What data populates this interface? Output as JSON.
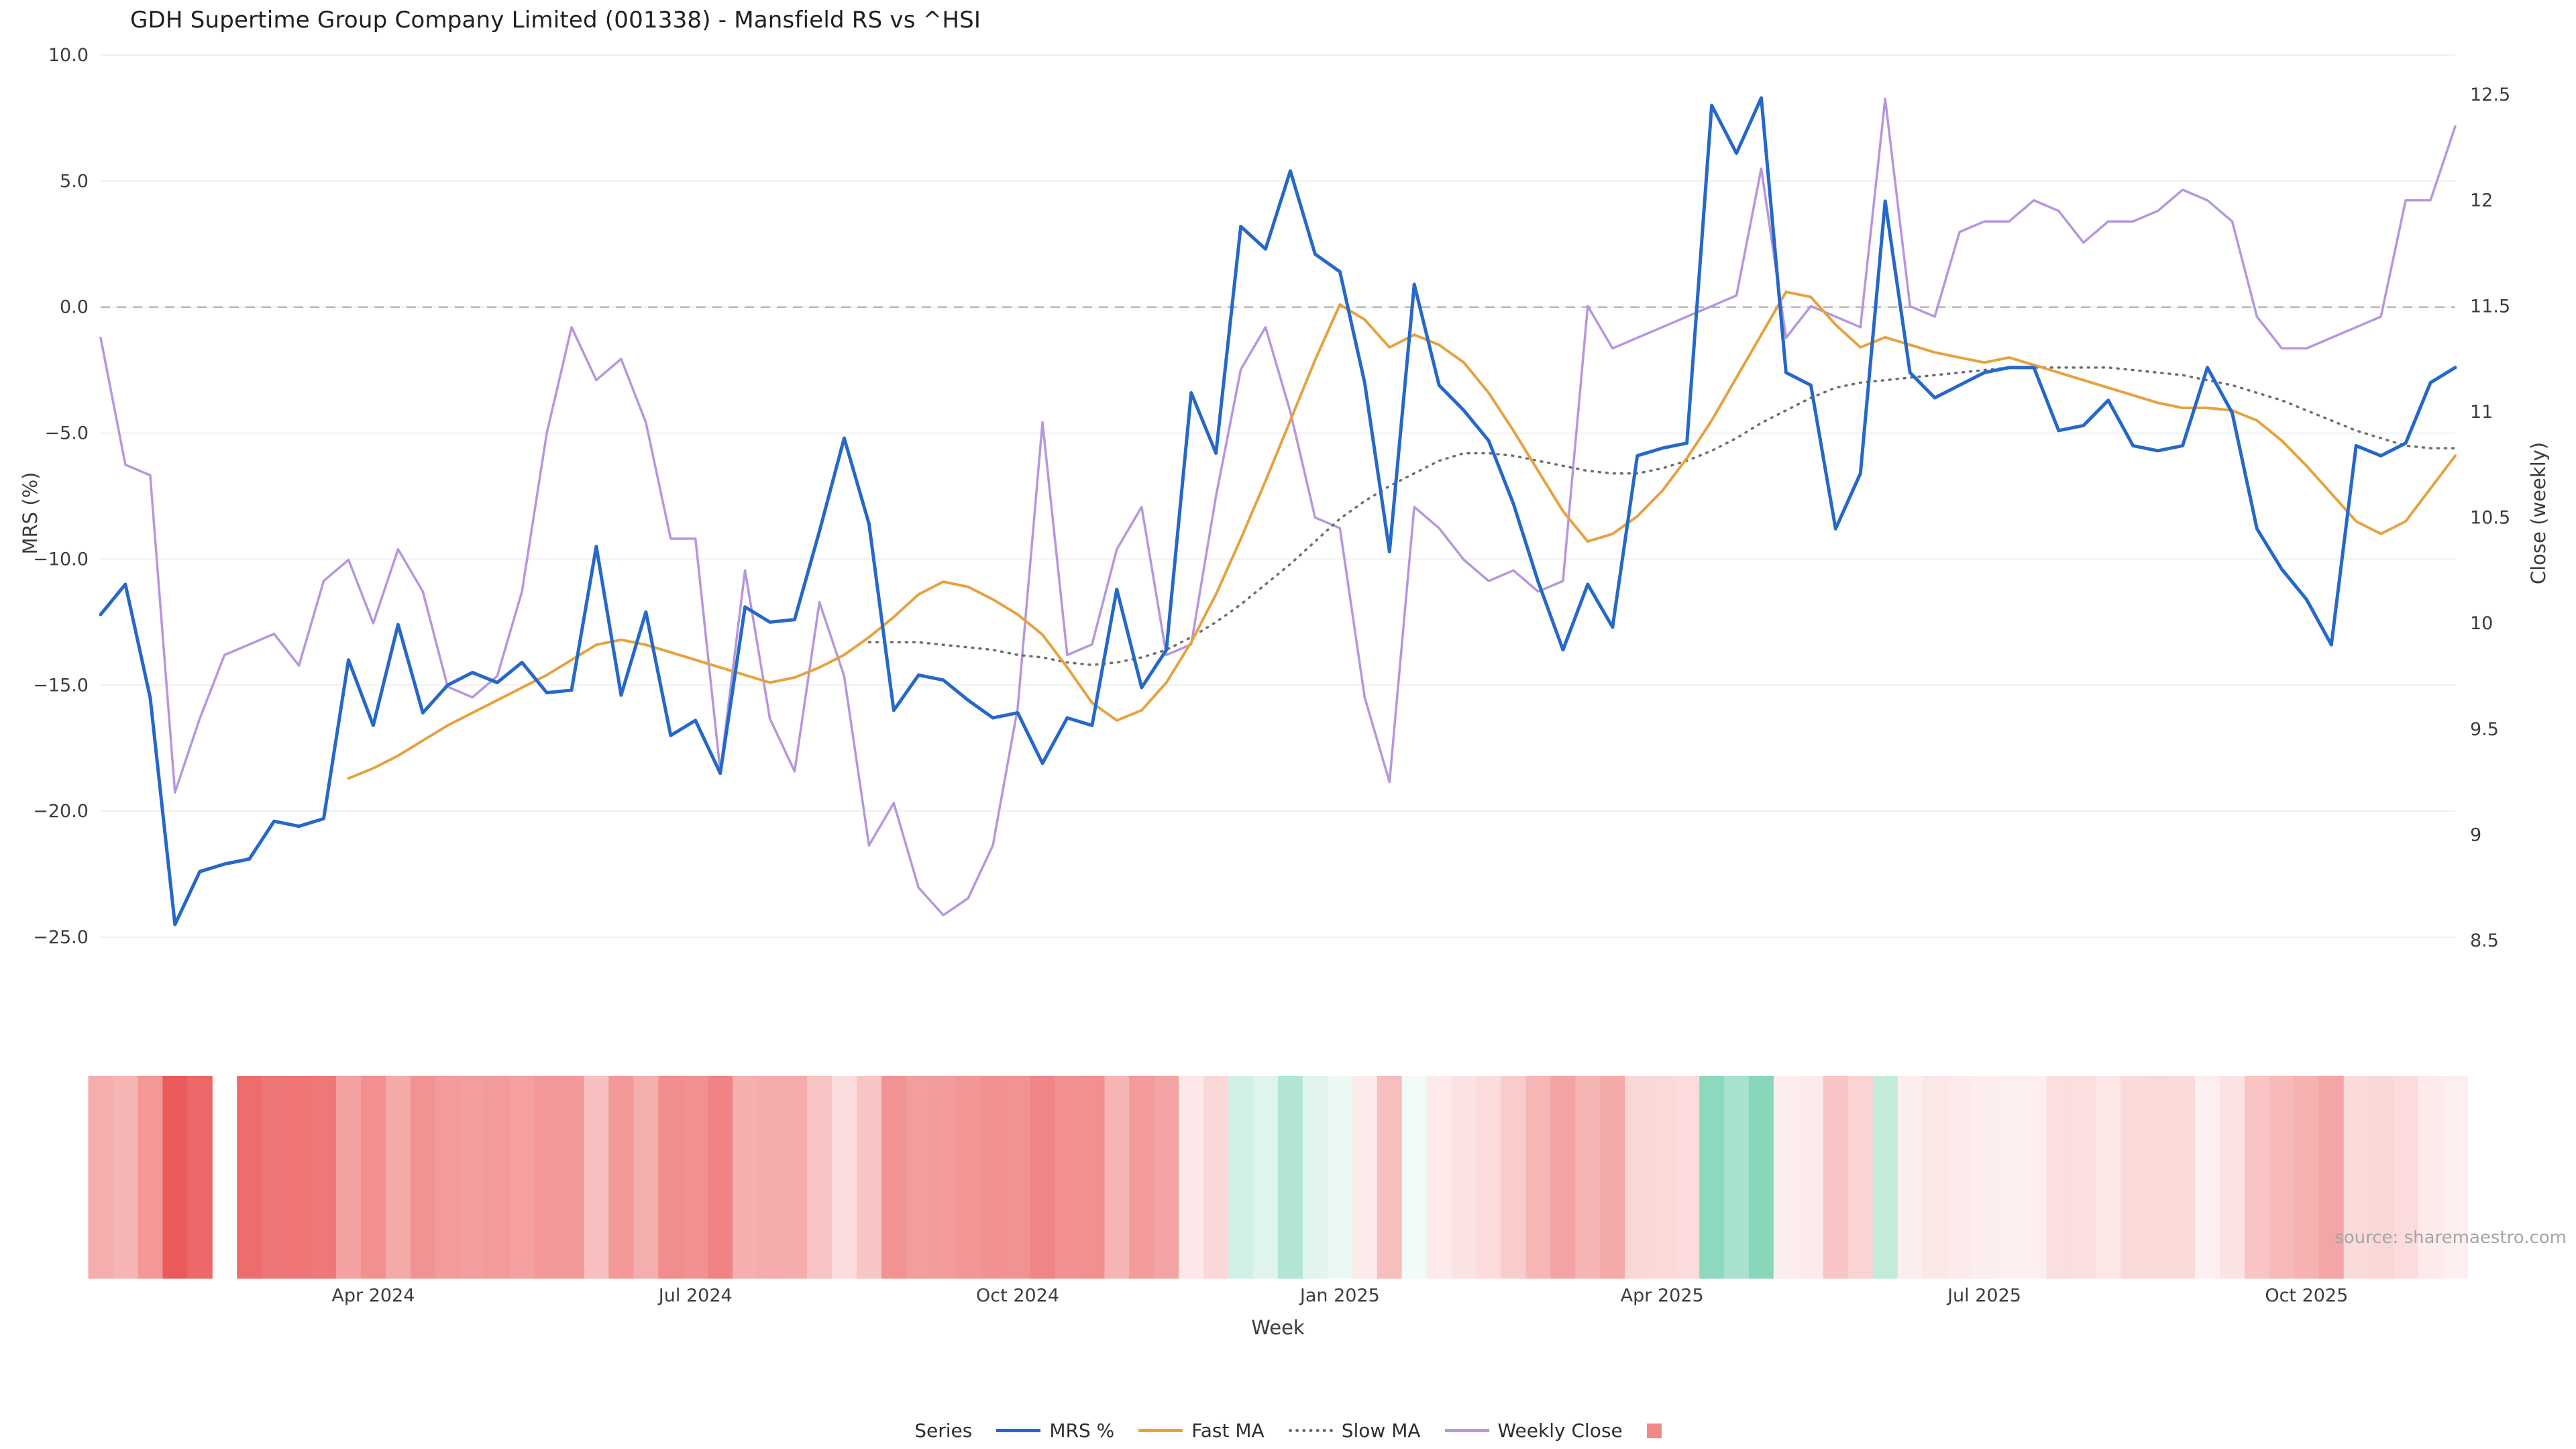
{
  "title": "GDH Supertime Group Company Limited (001338) - Mansfield RS vs ^HSI",
  "source": "source: sharemaestro.com",
  "axes": {
    "left_label": "MRS (%)",
    "right_label": "Close (weekly)",
    "x_label": "Week",
    "left_ticks": [
      10.0,
      5.0,
      0.0,
      -5.0,
      -10.0,
      -15.0,
      -20.0,
      -25.0
    ],
    "left_tick_labels": [
      "10.0",
      "5.0",
      "0.0",
      "−5.0",
      "−10.0",
      "−15.0",
      "−20.0",
      "−25.0"
    ],
    "right_ticks": [
      12.5,
      12,
      11.5,
      11,
      10.5,
      10,
      9.5,
      9,
      8.5
    ],
    "right_tick_labels": [
      "12.5",
      "12",
      "11.5",
      "11",
      "10.5",
      "10",
      "9.5",
      "9",
      "8.5"
    ],
    "x_ticks": [
      {
        "index": 11,
        "label": "Apr 2024"
      },
      {
        "index": 24,
        "label": "Jul 2024"
      },
      {
        "index": 37,
        "label": "Oct 2024"
      },
      {
        "index": 50,
        "label": "Jan 2025"
      },
      {
        "index": 63,
        "label": "Apr 2025"
      },
      {
        "index": 76,
        "label": "Jul 2025"
      },
      {
        "index": 89,
        "label": "Oct 2025"
      }
    ]
  },
  "legend": {
    "title": "Series",
    "items": [
      {
        "label": "MRS %",
        "swatch": "line",
        "color": "#2568c9"
      },
      {
        "label": "Fast MA",
        "swatch": "line",
        "color": "#e6a23f"
      },
      {
        "label": "Slow MA",
        "swatch": "dotted-line",
        "color": "#6e6e6e"
      },
      {
        "label": "Weekly Close",
        "swatch": "line",
        "color": "#b696de"
      },
      {
        "label": "",
        "swatch": "square",
        "color": "#f08888"
      }
    ]
  },
  "colors": {
    "grid": "#f0f0f0",
    "zero_line": "#b9b9b9",
    "tick_text": "#3d3d3d",
    "mrs_line": "#2568c9",
    "fast_ma_line": "#e6a23f",
    "slow_ma_line": "#6e6e6e",
    "weekly_close_line": "#b696de"
  },
  "chart_data": {
    "type": "line",
    "title": "GDH Supertime Group Company Limited (001338) - Mansfield RS vs ^HSI",
    "xlabel": "Week",
    "x_unit": "week-index",
    "n_points": 96,
    "grid": true,
    "zero_baseline_dashed": true,
    "legend_position": "bottom-center",
    "y_left": {
      "label": "MRS (%)",
      "range": [
        -25,
        10
      ]
    },
    "y_right": {
      "label": "Close (weekly)",
      "range": [
        8.5,
        12.5
      ]
    },
    "x_tick_labels": [
      "Apr 2024",
      "Jul 2024",
      "Oct 2024",
      "Jan 2025",
      "Apr 2025",
      "Jul 2025",
      "Oct 2025"
    ],
    "series": [
      {
        "name": "MRS %",
        "axis": "left",
        "color": "#2568c9",
        "style": "solid",
        "values": [
          -12.2,
          -11.0,
          -15.5,
          -24.5,
          -22.4,
          -22.1,
          -21.9,
          -20.4,
          -20.6,
          -20.3,
          -14.0,
          -16.6,
          -12.6,
          -16.1,
          -15.0,
          -14.5,
          -14.9,
          -14.1,
          -15.3,
          -15.2,
          -9.5,
          -15.4,
          -12.1,
          -17.0,
          -16.4,
          -18.5,
          -11.9,
          -12.5,
          -12.4,
          -8.9,
          -5.2,
          -8.6,
          -16.0,
          -14.6,
          -14.8,
          -15.6,
          -16.3,
          -16.1,
          -18.1,
          -16.3,
          -16.6,
          -11.2,
          -15.1,
          -13.6,
          -3.4,
          -5.8,
          3.2,
          2.3,
          5.4,
          2.1,
          1.4,
          -3.0,
          -9.7,
          0.9,
          -3.1,
          -4.1,
          -5.3,
          -7.8,
          -10.9,
          -13.6,
          -11.0,
          -12.7,
          -5.9,
          -5.6,
          -5.4,
          8.0,
          6.1,
          8.3,
          -2.6,
          -3.1,
          -8.8,
          -6.6,
          4.2,
          -2.6,
          -3.6,
          -3.1,
          -2.6,
          -2.4,
          -2.4,
          -4.9,
          -4.7,
          -3.7,
          -5.5,
          -5.7,
          -5.5,
          -2.4,
          -4.2,
          -8.8,
          -10.4,
          -11.6,
          -13.4,
          -5.5,
          -5.9,
          -5.4,
          -3.0,
          -2.4
        ]
      },
      {
        "name": "Fast MA",
        "axis": "left",
        "color": "#e6a23f",
        "style": "solid",
        "values": [
          null,
          null,
          null,
          null,
          null,
          null,
          null,
          null,
          null,
          null,
          -18.7,
          -18.3,
          -17.8,
          -17.2,
          -16.6,
          -16.1,
          -15.6,
          -15.1,
          -14.6,
          -14.0,
          -13.4,
          -13.2,
          -13.4,
          -13.7,
          -14.0,
          -14.3,
          -14.6,
          -14.9,
          -14.7,
          -14.3,
          -13.8,
          -13.1,
          -12.3,
          -11.4,
          -10.9,
          -11.1,
          -11.6,
          -12.2,
          -13.0,
          -14.3,
          -15.7,
          -16.4,
          -16.0,
          -14.9,
          -13.3,
          -11.4,
          -9.2,
          -6.9,
          -4.5,
          -2.1,
          0.1,
          -0.5,
          -1.6,
          -1.1,
          -1.5,
          -2.2,
          -3.4,
          -4.9,
          -6.5,
          -8.1,
          -9.3,
          -9.0,
          -8.3,
          -7.3,
          -6.0,
          -4.5,
          -2.8,
          -1.1,
          0.6,
          0.4,
          -0.7,
          -1.6,
          -1.2,
          -1.5,
          -1.8,
          -2.0,
          -2.2,
          -2.0,
          -2.3,
          -2.6,
          -2.9,
          -3.2,
          -3.5,
          -3.8,
          -4.0,
          -4.0,
          -4.1,
          -4.5,
          -5.3,
          -6.3,
          -7.4,
          -8.5,
          -9.0,
          -8.5,
          -7.2,
          -5.9
        ]
      },
      {
        "name": "Slow MA",
        "axis": "left",
        "color": "#6e6e6e",
        "style": "dotted",
        "values": [
          null,
          null,
          null,
          null,
          null,
          null,
          null,
          null,
          null,
          null,
          null,
          null,
          null,
          null,
          null,
          null,
          null,
          null,
          null,
          null,
          null,
          null,
          null,
          null,
          null,
          null,
          null,
          null,
          null,
          null,
          null,
          -13.3,
          -13.3,
          -13.3,
          -13.4,
          -13.5,
          -13.6,
          -13.8,
          -13.9,
          -14.1,
          -14.2,
          -14.1,
          -13.9,
          -13.6,
          -13.1,
          -12.5,
          -11.8,
          -11.0,
          -10.2,
          -9.3,
          -8.4,
          -7.7,
          -7.1,
          -6.6,
          -6.1,
          -5.8,
          -5.8,
          -5.9,
          -6.1,
          -6.3,
          -6.5,
          -6.6,
          -6.6,
          -6.4,
          -6.1,
          -5.7,
          -5.2,
          -4.6,
          -4.1,
          -3.6,
          -3.2,
          -3.0,
          -2.9,
          -2.8,
          -2.7,
          -2.6,
          -2.5,
          -2.4,
          -2.4,
          -2.4,
          -2.4,
          -2.4,
          -2.5,
          -2.6,
          -2.7,
          -2.9,
          -3.1,
          -3.4,
          -3.7,
          -4.1,
          -4.5,
          -4.9,
          -5.2,
          -5.5,
          -5.6,
          -5.6
        ]
      },
      {
        "name": "Weekly Close",
        "axis": "right",
        "color": "#b696de",
        "style": "solid",
        "values": [
          11.35,
          10.75,
          10.7,
          9.2,
          9.55,
          9.85,
          9.9,
          9.95,
          9.8,
          10.2,
          10.3,
          10.0,
          10.35,
          10.15,
          9.7,
          9.65,
          9.75,
          10.15,
          10.9,
          11.4,
          11.15,
          11.25,
          10.95,
          10.4,
          10.4,
          9.3,
          10.25,
          9.55,
          9.3,
          10.1,
          9.75,
          8.95,
          9.15,
          8.75,
          8.62,
          8.7,
          8.95,
          9.6,
          10.95,
          9.85,
          9.9,
          10.35,
          10.55,
          9.85,
          9.9,
          10.6,
          11.2,
          11.4,
          11.0,
          10.5,
          10.45,
          9.65,
          9.25,
          10.55,
          10.45,
          10.3,
          10.2,
          10.25,
          10.15,
          10.2,
          11.5,
          11.3,
          11.35,
          11.4,
          11.45,
          11.5,
          11.55,
          12.15,
          11.35,
          11.5,
          11.45,
          11.4,
          12.48,
          11.5,
          11.45,
          11.85,
          11.9,
          11.9,
          12.0,
          11.95,
          11.8,
          11.9,
          11.9,
          11.95,
          12.05,
          12.0,
          11.9,
          11.45,
          11.3,
          11.3,
          11.35,
          11.4,
          11.45,
          12.0,
          12.0,
          12.35
        ]
      }
    ],
    "heatmap": {
      "description": "weekly strip colored by MRS % value",
      "source_series": "MRS %",
      "gap_indices": [
        5
      ],
      "negative_color": "#eb5757",
      "positive_color": "#7fd4b5",
      "negative_max": 25,
      "positive_max": 9
    }
  }
}
